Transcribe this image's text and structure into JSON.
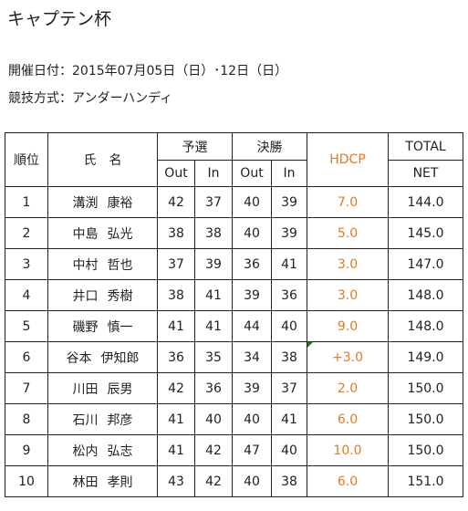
{
  "title": "キャプテン杯",
  "info": {
    "date": "開催日付：2015年07月05日（日）･12日（日）",
    "format": "競技方式：アンダーハンディ"
  },
  "table": {
    "headers": {
      "rank": "順位",
      "name": "氏　名",
      "qualifying": "予選",
      "final": "決勝",
      "hdcp": "HDCP",
      "total": "TOTAL",
      "out": "Out",
      "in": "In",
      "net": "NET"
    },
    "rows": [
      {
        "rank": "1",
        "family": "溝渕",
        "given": "康裕",
        "q_out": "42",
        "q_in": "37",
        "f_out": "40",
        "f_in": "39",
        "hdcp": "7.0",
        "net": "144.0"
      },
      {
        "rank": "2",
        "family": "中島",
        "given": "弘光",
        "q_out": "38",
        "q_in": "38",
        "f_out": "40",
        "f_in": "39",
        "hdcp": "5.0",
        "net": "145.0"
      },
      {
        "rank": "3",
        "family": "中村",
        "given": "哲也",
        "q_out": "37",
        "q_in": "39",
        "f_out": "36",
        "f_in": "41",
        "hdcp": "3.0",
        "net": "147.0"
      },
      {
        "rank": "4",
        "family": "井口",
        "given": "秀樹",
        "q_out": "38",
        "q_in": "41",
        "f_out": "39",
        "f_in": "36",
        "hdcp": "3.0",
        "net": "148.0"
      },
      {
        "rank": "5",
        "family": "磯野",
        "given": "慎一",
        "q_out": "41",
        "q_in": "41",
        "f_out": "44",
        "f_in": "40",
        "hdcp": "9.0",
        "net": "148.0"
      },
      {
        "rank": "6",
        "family": "谷本",
        "given": "伊知郎",
        "q_out": "36",
        "q_in": "35",
        "f_out": "34",
        "f_in": "38",
        "hdcp": "+3.0",
        "net": "149.0"
      },
      {
        "rank": "7",
        "family": "川田",
        "given": "辰男",
        "q_out": "42",
        "q_in": "36",
        "f_out": "39",
        "f_in": "37",
        "hdcp": "2.0",
        "net": "150.0"
      },
      {
        "rank": "8",
        "family": "石川",
        "given": "邦彦",
        "q_out": "41",
        "q_in": "40",
        "f_out": "40",
        "f_in": "41",
        "hdcp": "6.0",
        "net": "150.0"
      },
      {
        "rank": "9",
        "family": "松内",
        "given": "弘志",
        "q_out": "41",
        "q_in": "42",
        "f_out": "47",
        "f_in": "40",
        "hdcp": "10.0",
        "net": "150.0"
      },
      {
        "rank": "10",
        "family": "林田",
        "given": "孝則",
        "q_out": "43",
        "q_in": "42",
        "f_out": "40",
        "f_in": "38",
        "hdcp": "6.0",
        "net": "151.0"
      }
    ]
  },
  "colors": {
    "hdcp": "#e07b20",
    "marker": "#1f7a2a"
  }
}
